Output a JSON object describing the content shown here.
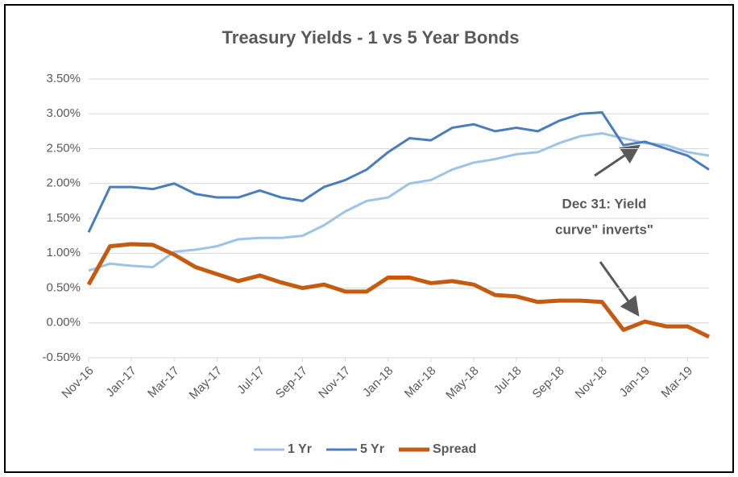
{
  "chart_data": {
    "type": "line",
    "title": "Treasury Yields - 1 vs 5 Year Bonds",
    "x": [
      "2016-11",
      "2016-12",
      "2017-01",
      "2017-02",
      "2017-03",
      "2017-04",
      "2017-05",
      "2017-06",
      "2017-07",
      "2017-08",
      "2017-09",
      "2017-10",
      "2017-11",
      "2017-12",
      "2018-01",
      "2018-02",
      "2018-03",
      "2018-04",
      "2018-05",
      "2018-06",
      "2018-07",
      "2018-08",
      "2018-09",
      "2018-10",
      "2018-11",
      "2018-12",
      "2019-01",
      "2019-02",
      "2019-03",
      "2019-04"
    ],
    "series": [
      {
        "name": "1 Yr",
        "color": "#9dc3e6",
        "width": 3,
        "values": [
          0.75,
          0.85,
          0.82,
          0.8,
          1.02,
          1.05,
          1.1,
          1.2,
          1.22,
          1.22,
          1.25,
          1.4,
          1.6,
          1.75,
          1.8,
          2.0,
          2.05,
          2.2,
          2.3,
          2.35,
          2.42,
          2.45,
          2.58,
          2.68,
          2.72,
          2.65,
          2.58,
          2.55,
          2.45,
          2.4
        ]
      },
      {
        "name": "5 Yr",
        "color": "#4a7ebb",
        "width": 3,
        "values": [
          1.3,
          1.95,
          1.95,
          1.92,
          2.0,
          1.85,
          1.8,
          1.8,
          1.9,
          1.8,
          1.75,
          1.95,
          2.05,
          2.2,
          2.45,
          2.65,
          2.62,
          2.8,
          2.85,
          2.75,
          2.8,
          2.75,
          2.9,
          3.0,
          3.02,
          2.55,
          2.6,
          2.5,
          2.4,
          2.2
        ]
      },
      {
        "name": "Spread",
        "color": "#c55a11",
        "width": 5,
        "values": [
          0.55,
          1.1,
          1.13,
          1.12,
          0.98,
          0.8,
          0.7,
          0.6,
          0.68,
          0.58,
          0.5,
          0.55,
          0.45,
          0.45,
          0.65,
          0.65,
          0.57,
          0.6,
          0.55,
          0.4,
          0.38,
          0.3,
          0.32,
          0.32,
          0.3,
          -0.1,
          0.02,
          -0.05,
          -0.05,
          -0.2
        ]
      }
    ],
    "xlim": [
      "2016-11",
      "2019-04"
    ],
    "xticks": [
      {
        "value": "2016-11",
        "label": "Nov-16"
      },
      {
        "value": "2017-01",
        "label": "Jan-17"
      },
      {
        "value": "2017-03",
        "label": "Mar-17"
      },
      {
        "value": "2017-05",
        "label": "May-17"
      },
      {
        "value": "2017-07",
        "label": "Jul-17"
      },
      {
        "value": "2017-09",
        "label": "Sep-17"
      },
      {
        "value": "2017-11",
        "label": "Nov-17"
      },
      {
        "value": "2018-01",
        "label": "Jan-18"
      },
      {
        "value": "2018-03",
        "label": "Mar-18"
      },
      {
        "value": "2018-05",
        "label": "May-18"
      },
      {
        "value": "2018-07",
        "label": "Jul-18"
      },
      {
        "value": "2018-09",
        "label": "Sep-18"
      },
      {
        "value": "2018-11",
        "label": "Nov-18"
      },
      {
        "value": "2019-01",
        "label": "Jan-19"
      },
      {
        "value": "2019-03",
        "label": "Mar-19"
      }
    ],
    "ylim": [
      -0.5,
      3.5
    ],
    "yticks": [
      {
        "value": -0.5,
        "label": "-0.50%"
      },
      {
        "value": 0,
        "label": "0.00%"
      },
      {
        "value": 0.5,
        "label": "0.50%"
      },
      {
        "value": 1,
        "label": "1.00%"
      },
      {
        "value": 1.5,
        "label": "1.50%"
      },
      {
        "value": 2,
        "label": "2.00%"
      },
      {
        "value": 2.5,
        "label": "2.50%"
      },
      {
        "value": 3,
        "label": "3.00%"
      },
      {
        "value": 3.5,
        "label": "3.50%"
      }
    ],
    "grid": true,
    "legend": "bottom",
    "annotation": [
      "Dec 31: Yield",
      "curve\" inverts\""
    ]
  }
}
